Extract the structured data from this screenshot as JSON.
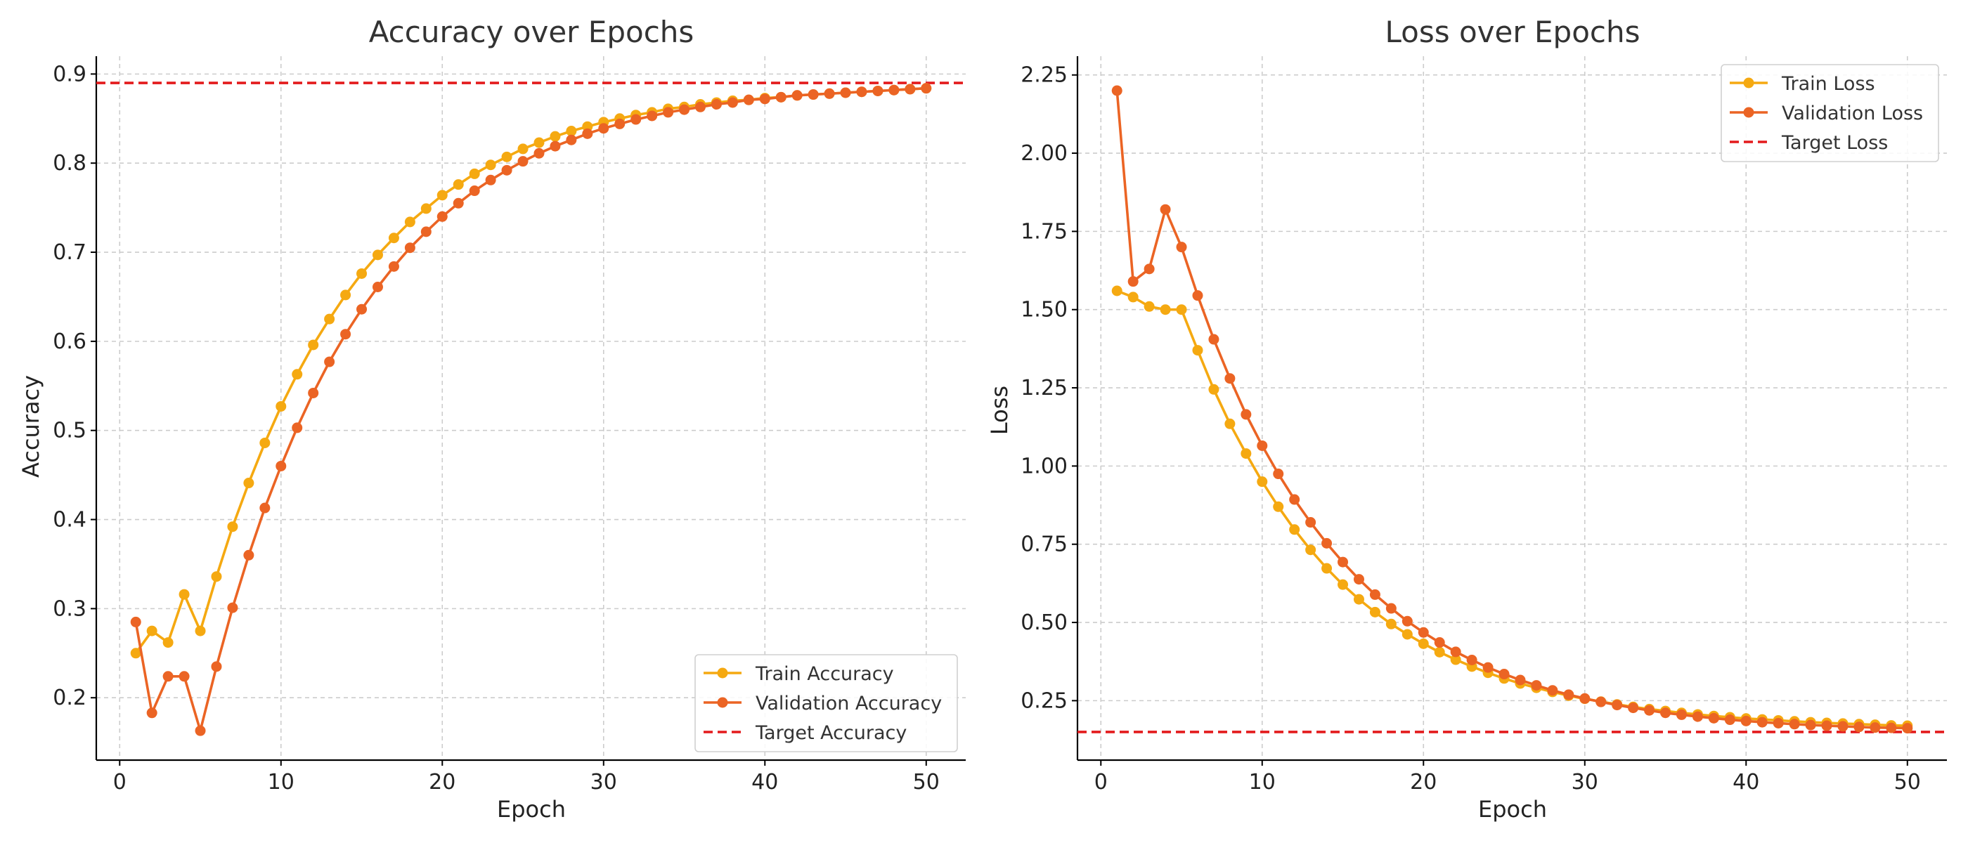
{
  "chart_data": [
    {
      "type": "line",
      "title": "Accuracy over Epochs",
      "xlabel": "Epoch",
      "ylabel": "Accuracy",
      "xlim": [
        -1.45,
        52.45
      ],
      "ylim": [
        0.13,
        0.92
      ],
      "xticks": [
        0,
        10,
        20,
        30,
        40,
        50
      ],
      "yticks": [
        0.2,
        0.3,
        0.4,
        0.5,
        0.6,
        0.7,
        0.8,
        0.9
      ],
      "ytick_decimals": 1,
      "grid": true,
      "legend_position": "lower-right",
      "x": [
        1,
        2,
        3,
        4,
        5,
        6,
        7,
        8,
        9,
        10,
        11,
        12,
        13,
        14,
        15,
        16,
        17,
        18,
        19,
        20,
        21,
        22,
        23,
        24,
        25,
        26,
        27,
        28,
        29,
        30,
        31,
        32,
        33,
        34,
        35,
        36,
        37,
        38,
        39,
        40,
        41,
        42,
        43,
        44,
        45,
        46,
        47,
        48,
        49,
        50
      ],
      "series": [
        {
          "name": "Train Accuracy",
          "color": "#f5a911",
          "values": [
            0.25,
            0.275,
            0.262,
            0.316,
            0.275,
            0.336,
            0.392,
            0.441,
            0.486,
            0.527,
            0.563,
            0.596,
            0.625,
            0.652,
            0.676,
            0.697,
            0.716,
            0.734,
            0.749,
            0.764,
            0.776,
            0.788,
            0.798,
            0.807,
            0.816,
            0.823,
            0.83,
            0.836,
            0.841,
            0.846,
            0.85,
            0.854,
            0.857,
            0.861,
            0.863,
            0.866,
            0.868,
            0.87,
            0.871,
            0.873,
            0.874,
            0.876,
            0.877,
            0.878,
            0.879,
            0.88,
            0.881,
            0.882,
            0.883,
            0.884
          ]
        },
        {
          "name": "Validation Accuracy",
          "color": "#eb6424",
          "values": [
            0.285,
            0.183,
            0.224,
            0.224,
            0.163,
            0.235,
            0.301,
            0.36,
            0.413,
            0.46,
            0.503,
            0.542,
            0.577,
            0.608,
            0.636,
            0.661,
            0.684,
            0.705,
            0.723,
            0.74,
            0.755,
            0.769,
            0.781,
            0.792,
            0.802,
            0.811,
            0.819,
            0.826,
            0.833,
            0.839,
            0.844,
            0.849,
            0.853,
            0.857,
            0.86,
            0.863,
            0.866,
            0.868,
            0.871,
            0.872,
            0.874,
            0.876,
            0.877,
            0.878,
            0.879,
            0.88,
            0.881,
            0.882,
            0.883,
            0.884
          ]
        }
      ],
      "reference_line": {
        "name": "Target Accuracy",
        "y": 0.89,
        "color": "#e31a1c"
      }
    },
    {
      "type": "line",
      "title": "Loss over Epochs",
      "xlabel": "Epoch",
      "ylabel": "Loss",
      "xlim": [
        -1.45,
        52.45
      ],
      "ylim": [
        0.06,
        2.31
      ],
      "xticks": [
        0,
        10,
        20,
        30,
        40,
        50
      ],
      "yticks": [
        0.25,
        0.5,
        0.75,
        1.0,
        1.25,
        1.5,
        1.75,
        2.0,
        2.25
      ],
      "ytick_decimals": 2,
      "grid": true,
      "legend_position": "upper-right",
      "x": [
        1,
        2,
        3,
        4,
        5,
        6,
        7,
        8,
        9,
        10,
        11,
        12,
        13,
        14,
        15,
        16,
        17,
        18,
        19,
        20,
        21,
        22,
        23,
        24,
        25,
        26,
        27,
        28,
        29,
        30,
        31,
        32,
        33,
        34,
        35,
        36,
        37,
        38,
        39,
        40,
        41,
        42,
        43,
        44,
        45,
        46,
        47,
        48,
        49,
        50
      ],
      "series": [
        {
          "name": "Train Loss",
          "color": "#f5a911",
          "values": [
            1.56,
            1.54,
            1.51,
            1.5,
            1.5,
            1.37,
            1.245,
            1.135,
            1.04,
            0.95,
            0.87,
            0.797,
            0.732,
            0.673,
            0.621,
            0.574,
            0.533,
            0.495,
            0.462,
            0.432,
            0.405,
            0.381,
            0.359,
            0.339,
            0.321,
            0.305,
            0.291,
            0.278,
            0.266,
            0.256,
            0.247,
            0.238,
            0.23,
            0.223,
            0.217,
            0.211,
            0.206,
            0.201,
            0.197,
            0.193,
            0.19,
            0.187,
            0.184,
            0.181,
            0.179,
            0.177,
            0.175,
            0.173,
            0.171,
            0.17
          ]
        },
        {
          "name": "Validation Loss",
          "color": "#eb6424",
          "values": [
            2.2,
            1.59,
            1.63,
            1.82,
            1.7,
            1.545,
            1.405,
            1.28,
            1.165,
            1.065,
            0.975,
            0.893,
            0.82,
            0.753,
            0.693,
            0.638,
            0.589,
            0.545,
            0.504,
            0.468,
            0.436,
            0.406,
            0.38,
            0.356,
            0.335,
            0.316,
            0.299,
            0.283,
            0.269,
            0.257,
            0.246,
            0.236,
            0.227,
            0.219,
            0.211,
            0.205,
            0.199,
            0.194,
            0.189,
            0.185,
            0.181,
            0.178,
            0.175,
            0.172,
            0.17,
            0.168,
            0.166,
            0.164,
            0.163,
            0.162
          ]
        }
      ],
      "reference_line": {
        "name": "Target Loss",
        "y": 0.15,
        "color": "#e31a1c"
      }
    }
  ]
}
